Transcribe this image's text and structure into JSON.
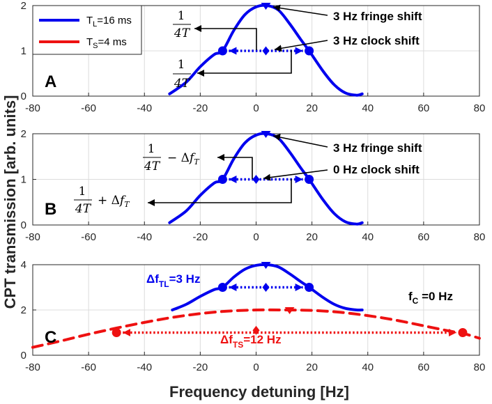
{
  "figure": {
    "ylabel": "CPT transmission [arb. units]",
    "xlabel": "Frequency detuning [Hz]",
    "colors": {
      "blue": "#0000ee",
      "red": "#ee1111",
      "axis": "#262626",
      "grid": "#dcdcdc"
    }
  },
  "legend": {
    "items": [
      {
        "name": "T",
        "sub": "L",
        "rest": "=16 ms",
        "color": "#0000ee",
        "style": "solid"
      },
      {
        "name": "T",
        "sub": "S",
        "rest": "=4 ms",
        "color": "#ee1111",
        "style": "dashed"
      }
    ]
  },
  "chart_data": [
    {
      "type": "line",
      "panel_label": "A",
      "xlim": [
        -80,
        80
      ],
      "ylim": [
        0,
        2
      ],
      "xticks": [
        -80,
        -60,
        -40,
        -20,
        0,
        20,
        40,
        60,
        80
      ],
      "yticks": [
        0,
        1,
        2
      ],
      "grid": true,
      "series": [
        {
          "name": "TL=16 ms",
          "color": "#0000ee",
          "style": "solid",
          "x": [
            -31,
            -25,
            -20,
            -15,
            -12,
            -8,
            -4,
            0,
            4,
            8,
            12,
            16,
            19,
            24,
            28,
            32,
            36,
            38
          ],
          "y": [
            0.05,
            0.31,
            0.65,
            0.92,
            1.0,
            1.45,
            1.8,
            1.97,
            2.0,
            1.9,
            1.6,
            1.25,
            1.0,
            0.55,
            0.25,
            0.07,
            0.02,
            0.05
          ]
        }
      ],
      "markers": [
        {
          "shape": "circle",
          "x": -12,
          "y": 1,
          "color": "#0000ee"
        },
        {
          "shape": "circle",
          "x": 19,
          "y": 1,
          "color": "#0000ee"
        },
        {
          "shape": "diamond",
          "x": 3.5,
          "y": 1,
          "color": "#0000ee"
        },
        {
          "shape": "triangle",
          "x": 3.5,
          "y": 2,
          "color": "#0000ee"
        }
      ],
      "dotted_arrows": [
        {
          "x1": -12,
          "x2": 19,
          "y": 1,
          "color": "#0000ee"
        }
      ],
      "labels": [
        "3 Hz fringe shift",
        "3 Hz clock shift"
      ],
      "math_labels": [
        "1/4T",
        "1/4T"
      ]
    },
    {
      "type": "line",
      "panel_label": "B",
      "xlim": [
        -80,
        80
      ],
      "ylim": [
        0,
        2
      ],
      "xticks": [
        -80,
        -60,
        -40,
        -20,
        0,
        20,
        40,
        60,
        80
      ],
      "yticks": [
        0,
        1,
        2
      ],
      "grid": true,
      "series": [
        {
          "name": "TL=16 ms",
          "color": "#0000ee",
          "style": "solid",
          "x": [
            -31,
            -25,
            -20,
            -15,
            -12,
            -8,
            -4,
            0,
            4,
            8,
            12,
            16,
            19,
            24,
            28,
            32,
            36,
            38
          ],
          "y": [
            0.05,
            0.31,
            0.65,
            0.92,
            1.0,
            1.45,
            1.8,
            1.97,
            2.0,
            1.9,
            1.6,
            1.25,
            1.0,
            0.55,
            0.25,
            0.07,
            0.02,
            0.05
          ]
        }
      ],
      "markers": [
        {
          "shape": "circle",
          "x": -12,
          "y": 1,
          "color": "#0000ee"
        },
        {
          "shape": "circle",
          "x": 19,
          "y": 1,
          "color": "#0000ee"
        },
        {
          "shape": "diamond",
          "x": 0,
          "y": 1,
          "color": "#0000ee"
        },
        {
          "shape": "triangle",
          "x": 3.5,
          "y": 2,
          "color": "#0000ee"
        }
      ],
      "dotted_arrows": [
        {
          "x1": -12,
          "x2": 19,
          "y": 1,
          "color": "#0000ee"
        }
      ],
      "labels": [
        "3 Hz fringe shift",
        "0 Hz clock shift"
      ],
      "math_labels": [
        "1/4T − Δf_T",
        "1/4T + Δf_T"
      ]
    },
    {
      "type": "line",
      "panel_label": "C",
      "xlim": [
        -80,
        80
      ],
      "ylim": [
        0,
        4
      ],
      "xticks": [
        -80,
        -60,
        -40,
        -20,
        0,
        20,
        40,
        60,
        80
      ],
      "yticks": [
        0,
        2,
        4
      ],
      "grid": true,
      "series": [
        {
          "name": "TL=16 ms",
          "color": "#0000ee",
          "style": "solid",
          "x": [
            -30,
            -25,
            -20,
            -15,
            -12,
            -8,
            -4,
            0,
            4,
            8,
            12,
            16,
            19,
            24,
            28,
            32,
            36,
            38
          ],
          "y": [
            2.0,
            2.25,
            2.6,
            2.9,
            3.0,
            3.45,
            3.8,
            3.97,
            4.0,
            3.9,
            3.6,
            3.25,
            3.0,
            2.55,
            2.25,
            2.07,
            2.0,
            2.0
          ]
        },
        {
          "name": "TS=4 ms",
          "color": "#ee1111",
          "style": "dashed",
          "x": [
            -80,
            -70,
            -60,
            -50,
            -40,
            -30,
            -20,
            -10,
            0,
            10,
            12,
            20,
            30,
            40,
            50,
            60,
            70,
            74,
            80
          ],
          "y": [
            0.35,
            0.63,
            0.93,
            1.2,
            1.45,
            1.67,
            1.84,
            1.95,
            2.0,
            2.0,
            2.0,
            1.98,
            1.9,
            1.75,
            1.55,
            1.3,
            1.05,
            0.97,
            0.75
          ]
        }
      ],
      "markers": [
        {
          "shape": "circle",
          "x": -12,
          "y": 3,
          "color": "#0000ee"
        },
        {
          "shape": "circle",
          "x": 19,
          "y": 3,
          "color": "#0000ee"
        },
        {
          "shape": "diamond",
          "x": 3.5,
          "y": 3,
          "color": "#0000ee"
        },
        {
          "shape": "triangle",
          "x": 3.5,
          "y": 4,
          "color": "#0000ee"
        },
        {
          "shape": "circle",
          "x": -50,
          "y": 1,
          "color": "#ee1111"
        },
        {
          "shape": "circle",
          "x": 74,
          "y": 1,
          "color": "#ee1111"
        },
        {
          "shape": "diamond",
          "x": 0,
          "y": 1.1,
          "color": "#ee1111"
        },
        {
          "shape": "triangle",
          "x": 12,
          "y": 2,
          "color": "#ee1111"
        }
      ],
      "dotted_arrows": [
        {
          "x1": -12,
          "x2": 19,
          "y": 3,
          "color": "#0000ee"
        },
        {
          "x1": -50,
          "x2": 74,
          "y": 1,
          "color": "#ee1111"
        }
      ],
      "labels": [
        "Δf",
        "TL",
        "=3 Hz",
        "Δf",
        "TS",
        "=12 Hz",
        "f",
        "C",
        " =0 Hz"
      ]
    }
  ]
}
